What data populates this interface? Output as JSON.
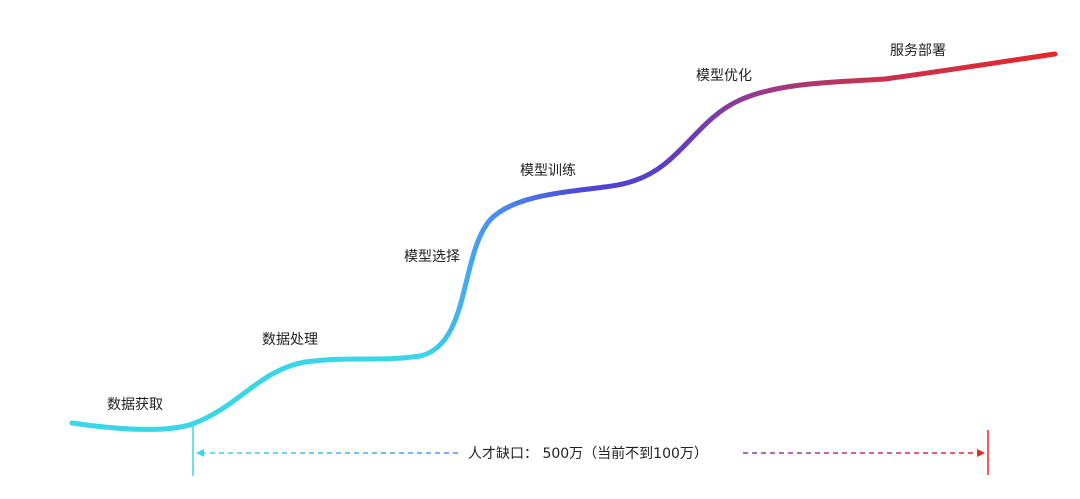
{
  "stages": [
    {
      "label": "数据获取"
    },
    {
      "label": "数据处理"
    },
    {
      "label": "模型选择"
    },
    {
      "label": "模型训练"
    },
    {
      "label": "模型优化"
    },
    {
      "label": "服务部署"
    }
  ],
  "gap": {
    "label": "人才缺口： 500万（当前不到100万）"
  },
  "colors": {
    "curve_start": "#3ad6e8",
    "curve_blue": "#3f8ef0",
    "curve_indigo": "#4a46d8",
    "curve_purple": "#7a3cb0",
    "curve_end": "#e8262a",
    "text": "#222222"
  }
}
